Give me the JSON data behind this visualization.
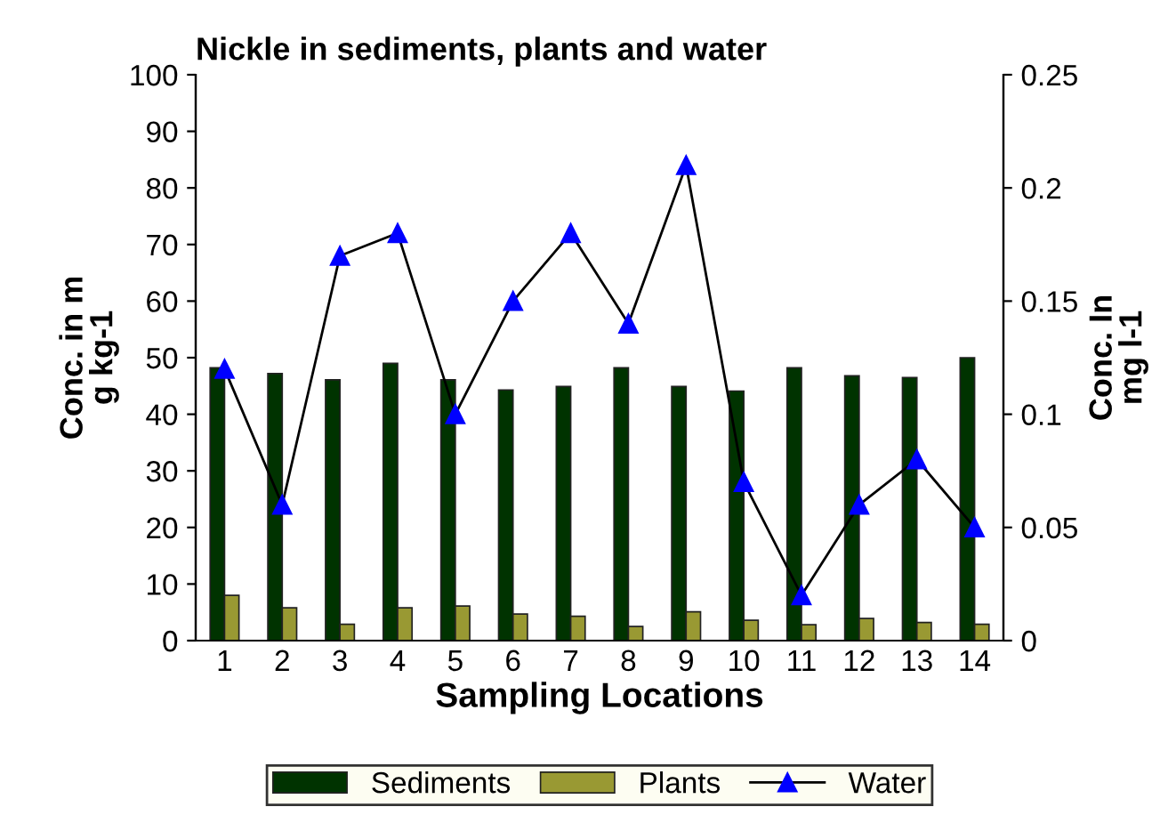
{
  "chart_data": {
    "type": "bar",
    "title": "Nickle in sediments, plants and water",
    "xlabel": "Sampling Locations",
    "ylabel": "Conc. in m\ng kg-1",
    "y2label": "Conc. In\nmg l-1",
    "categories": [
      "1",
      "2",
      "3",
      "4",
      "5",
      "6",
      "7",
      "8",
      "9",
      "10",
      "11",
      "12",
      "13",
      "14"
    ],
    "series": [
      {
        "name": "Sediments",
        "color": "#003300",
        "values": [
          48.2,
          47.2,
          46.1,
          49,
          46.1,
          44.3,
          44.9,
          48.2,
          44.9,
          44.1,
          48.2,
          46.8,
          46.5,
          50
        ]
      },
      {
        "name": "Plants",
        "color": "#999933",
        "values": [
          8,
          5.8,
          2.9,
          5.8,
          6.1,
          4.7,
          4.3,
          2.5,
          5.1,
          3.6,
          2.8,
          3.9,
          3.2,
          2.9
        ]
      },
      {
        "name": "Water",
        "type": "line",
        "axis": "y2",
        "color": "#0000ff",
        "marker": "triangle",
        "values": [
          0.12,
          0.06,
          0.17,
          0.18,
          0.1,
          0.15,
          0.18,
          0.14,
          0.21,
          0.07,
          0.02,
          0.06,
          0.08,
          0.05
        ]
      }
    ],
    "ylim": [
      0,
      100
    ],
    "yticks": [
      0,
      10,
      20,
      30,
      40,
      50,
      60,
      70,
      80,
      90,
      100
    ],
    "y2lim": [
      0,
      0.25
    ],
    "y2ticks": [
      0,
      0.05,
      0.1,
      0.15,
      0.2,
      0.25
    ],
    "grid": false,
    "legend": "bottom"
  }
}
